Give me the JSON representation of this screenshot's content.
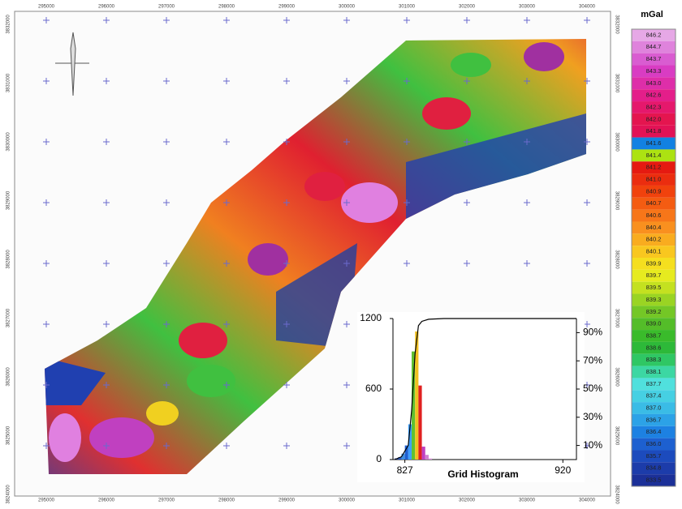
{
  "map": {
    "x_labels": [
      "295000",
      "296000",
      "297000",
      "298000",
      "299000",
      "300000",
      "301000",
      "302000",
      "303000",
      "304000"
    ],
    "y_labels": [
      "3832000",
      "3831000",
      "3830000",
      "3829000",
      "3828000",
      "3827000",
      "3826000",
      "3825000",
      "3824000"
    ]
  },
  "legend": {
    "title": "mGal",
    "labels": [
      "846.2",
      "844.7",
      "843.7",
      "843.3",
      "843.0",
      "842.6",
      "842.3",
      "842.0",
      "841.8",
      "841.6",
      "841.4",
      "841.2",
      "841.0",
      "840.9",
      "840.7",
      "840.6",
      "840.4",
      "840.2",
      "840.1",
      "839.9",
      "839.7",
      "839.5",
      "839.3",
      "839.2",
      "839.0",
      "838.7",
      "838.6",
      "838.3",
      "838.1",
      "837.7",
      "837.4",
      "837.0",
      "836.7",
      "836.4",
      "836.0",
      "835.7",
      "834.8",
      "833.5"
    ]
  },
  "chart_data": {
    "type": "histogram",
    "title": "Grid Histogram",
    "bins": [
      821,
      823,
      825,
      827,
      829,
      831,
      833,
      835,
      837,
      839,
      841,
      843
    ],
    "values": [
      10,
      20,
      50,
      120,
      300,
      920,
      1090,
      630,
      110,
      40,
      10
    ],
    "colors": [
      "#1f3fa0",
      "#2a5cc8",
      "#3f8fe0",
      "#2060d0",
      "#40a0ff",
      "#60c030",
      "#f0c020",
      "#e02020",
      "#c040c0",
      "#d080d0",
      "#e0a0e0"
    ],
    "xlim": [
      820,
      928
    ],
    "xticks": [
      827,
      920
    ],
    "ylim": [
      0,
      1200
    ],
    "yticks": [
      0,
      600,
      1200
    ],
    "y2lim": [
      0,
      100
    ],
    "y2ticks": [
      {
        "value": 10,
        "label": "10%"
      },
      {
        "value": 30,
        "label": "30%"
      },
      {
        "value": 50,
        "label": "50%"
      },
      {
        "value": 70,
        "label": "70%"
      },
      {
        "value": 90,
        "label": "90%"
      }
    ],
    "cumulative": {
      "x": [
        821,
        825,
        829,
        831,
        833,
        835,
        837,
        841,
        850,
        928
      ],
      "values": [
        0,
        2,
        10,
        35,
        75,
        95,
        98,
        99.5,
        100,
        100
      ],
      "color": "#000000"
    }
  }
}
